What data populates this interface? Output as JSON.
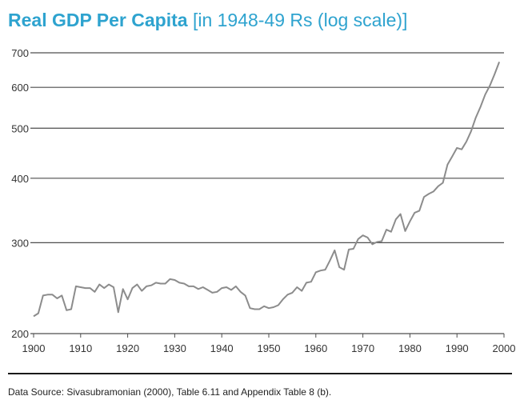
{
  "title": {
    "main": "Real GDP Per Capita",
    "sub": "[in 1948-49 Rs (log scale)]",
    "color": "#2ea3cf"
  },
  "source": "Data Source: Sivasubramonian (2000), Table 6.11 and Appendix Table 8 (b).",
  "colors": {
    "line": "#8c8c8c",
    "grid": "#4d4d4d",
    "text": "#333333"
  },
  "chart_data": {
    "type": "line",
    "title": "Real GDP Per Capita",
    "subtitle": "[in 1948-49 Rs (log scale)]",
    "xlabel": "",
    "ylabel": "",
    "yscale": "log",
    "xlim": [
      1900,
      2000
    ],
    "ylim": [
      200,
      700
    ],
    "xticks": [
      1900,
      1910,
      1920,
      1930,
      1940,
      1950,
      1960,
      1970,
      1980,
      1990,
      2000
    ],
    "yticks": [
      200,
      300,
      400,
      500,
      600,
      700
    ],
    "grid": "horizontal",
    "x": [
      1900,
      1901,
      1902,
      1903,
      1904,
      1905,
      1906,
      1907,
      1908,
      1909,
      1910,
      1911,
      1912,
      1913,
      1914,
      1915,
      1916,
      1917,
      1918,
      1919,
      1920,
      1921,
      1922,
      1923,
      1924,
      1925,
      1926,
      1927,
      1928,
      1929,
      1930,
      1931,
      1932,
      1933,
      1934,
      1935,
      1936,
      1937,
      1938,
      1939,
      1940,
      1941,
      1942,
      1943,
      1944,
      1945,
      1946,
      1947,
      1948,
      1949,
      1950,
      1951,
      1952,
      1953,
      1954,
      1955,
      1956,
      1957,
      1958,
      1959,
      1960,
      1961,
      1962,
      1963,
      1964,
      1965,
      1966,
      1967,
      1968,
      1969,
      1970,
      1971,
      1972,
      1973,
      1974,
      1975,
      1976,
      1977,
      1978,
      1979,
      1980,
      1981,
      1982,
      1983,
      1984,
      1985,
      1986,
      1987,
      1988,
      1989,
      1990,
      1991,
      1992,
      1993,
      1994,
      1995,
      1996,
      1997,
      1998,
      1999
    ],
    "series": [
      {
        "values": [
          216,
          219,
          237,
          238,
          238,
          234,
          237,
          222,
          223,
          247,
          246,
          245,
          245,
          241,
          249,
          245,
          249,
          246,
          220,
          244,
          233,
          245,
          249,
          242,
          247,
          248,
          251,
          250,
          250,
          255,
          254,
          251,
          250,
          247,
          247,
          244,
          246,
          243,
          240,
          241,
          245,
          246,
          243,
          247,
          241,
          237,
          224,
          223,
          223,
          226,
          224,
          225,
          227,
          233,
          238,
          240,
          246,
          242,
          251,
          252,
          263,
          265,
          266,
          277,
          290,
          269,
          266,
          291,
          292,
          305,
          310,
          307,
          298,
          301,
          302,
          318,
          315,
          333,
          341,
          316,
          330,
          343,
          346,
          368,
          373,
          377,
          386,
          392,
          425,
          441,
          458,
          455,
          471,
          493,
          524,
          550,
          581,
          605,
          636,
          672
        ]
      }
    ]
  }
}
